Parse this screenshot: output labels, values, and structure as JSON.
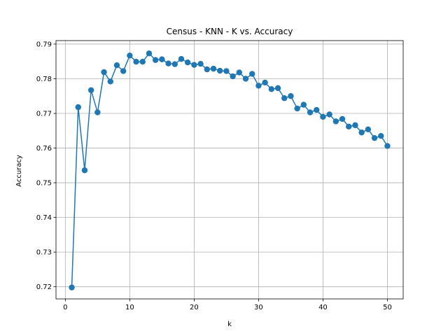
{
  "chart_data": {
    "type": "line",
    "title": "Census - KNN - K vs. Accuracy",
    "xlabel": "k",
    "ylabel": "Accuracy",
    "xlim": [
      -1.45,
      52.45
    ],
    "ylim": [
      0.7165,
      0.791
    ],
    "xticks": [
      0,
      10,
      20,
      30,
      40,
      50
    ],
    "yticks": [
      0.72,
      0.73,
      0.74,
      0.75,
      0.76,
      0.77,
      0.78,
      0.79
    ],
    "ytick_labels": [
      "0.72",
      "0.73",
      "0.74",
      "0.75",
      "0.76",
      "0.77",
      "0.78",
      "0.79"
    ],
    "grid": true,
    "marker": "circle",
    "color": "#1f77b4",
    "series": [
      {
        "x": [
          1,
          2,
          3,
          4,
          5,
          6,
          7,
          8,
          9,
          10,
          11,
          12,
          13,
          14,
          15,
          16,
          17,
          18,
          19,
          20,
          21,
          22,
          23,
          24,
          25,
          26,
          27,
          28,
          29,
          30,
          31,
          32,
          33,
          34,
          35,
          36,
          37,
          38,
          39,
          40,
          41,
          42,
          43,
          44,
          45,
          46,
          47,
          48,
          49,
          50
        ],
        "values": [
          0.7198,
          0.7718,
          0.7536,
          0.7767,
          0.7703,
          0.7819,
          0.7792,
          0.7839,
          0.7822,
          0.7867,
          0.7849,
          0.7849,
          0.7873,
          0.7854,
          0.7856,
          0.7844,
          0.7842,
          0.7857,
          0.7847,
          0.784,
          0.7843,
          0.7827,
          0.7829,
          0.7823,
          0.7822,
          0.7807,
          0.7818,
          0.78,
          0.7814,
          0.778,
          0.7789,
          0.777,
          0.7773,
          0.7744,
          0.775,
          0.7714,
          0.7725,
          0.7703,
          0.771,
          0.769,
          0.7697,
          0.7677,
          0.7684,
          0.7662,
          0.7666,
          0.7645,
          0.7654,
          0.7629,
          0.7635,
          0.7606
        ]
      }
    ]
  }
}
